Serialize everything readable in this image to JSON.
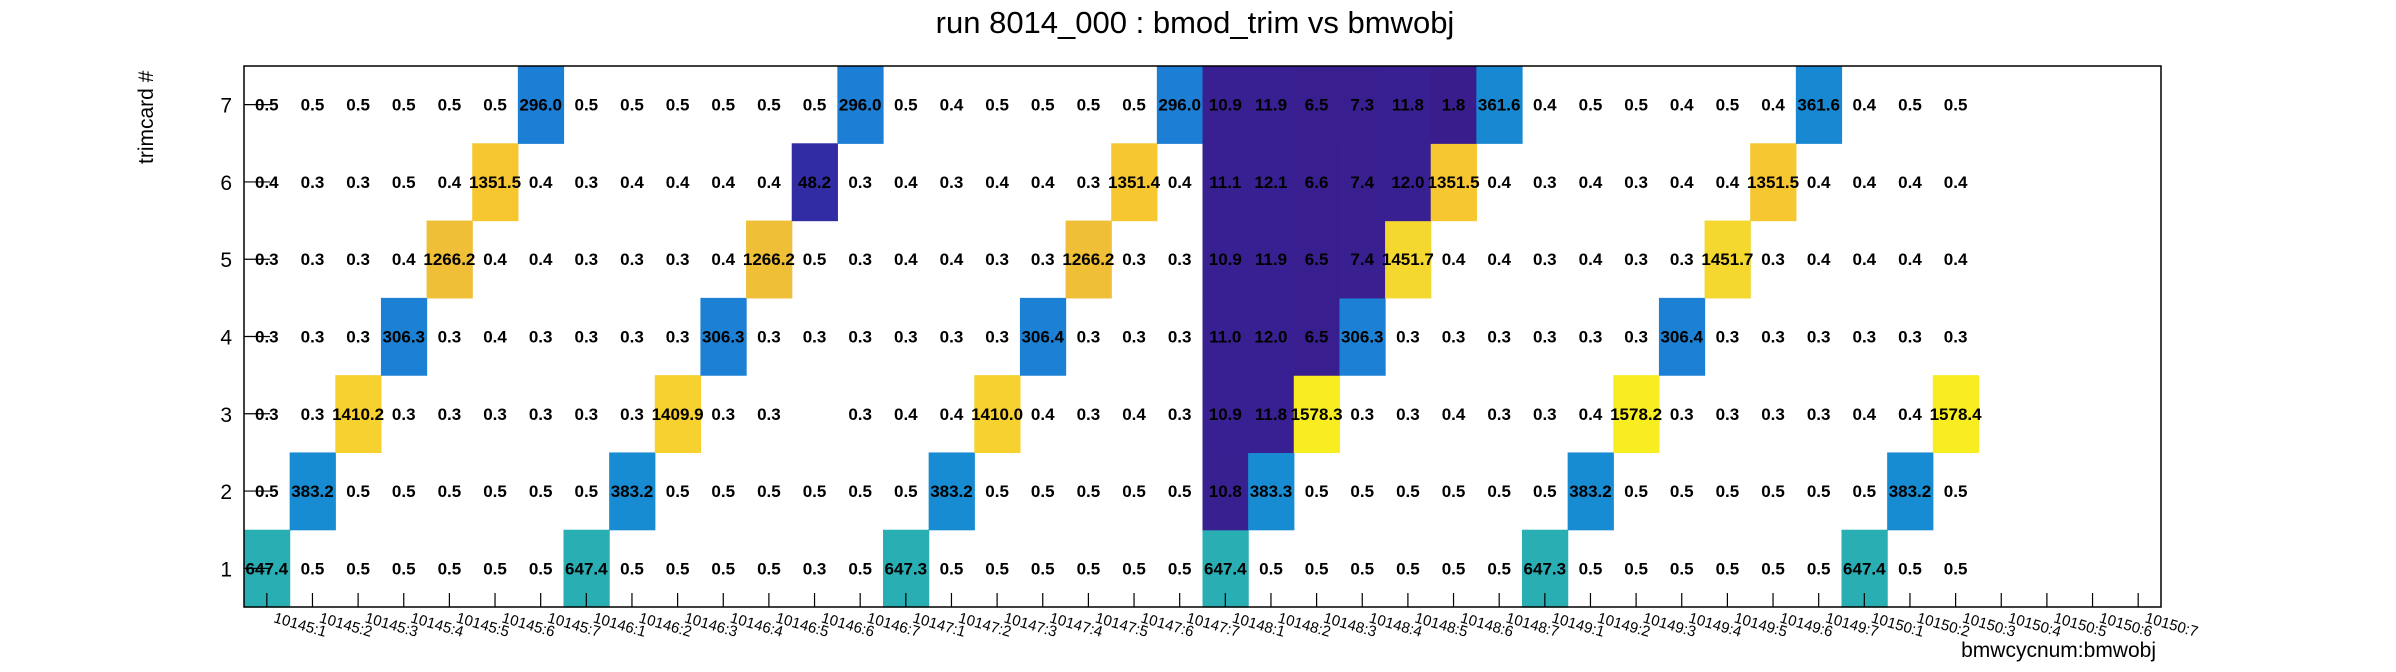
{
  "chart_data": {
    "type": "heatmap",
    "title": "run 8014_000 : bmod_trim vs bmwobj",
    "xlabel": "bmwcycnum:bmwobj",
    "ylabel": "trimcard #",
    "x": [
      "10145:1",
      "10145:2",
      "10145:3",
      "10145:4",
      "10145:5",
      "10145:6",
      "10145:7",
      "10146:1",
      "10146:2",
      "10146:3",
      "10146:4",
      "10146:5",
      "10146:6",
      "10146:7",
      "10147:1",
      "10147:2",
      "10147:3",
      "10147:4",
      "10147:5",
      "10147:6",
      "10147:7",
      "10148:1",
      "10148:2",
      "10148:3",
      "10148:4",
      "10148:5",
      "10148:6",
      "10148:7",
      "10149:1",
      "10149:2",
      "10149:3",
      "10149:4",
      "10149:5",
      "10149:6",
      "10149:7",
      "10150:1",
      "10150:2",
      "10150:3",
      "10150:4",
      "10150:5",
      "10150:6",
      "10150:7"
    ],
    "y": [
      "1",
      "2",
      "3",
      "4",
      "5",
      "6",
      "7"
    ],
    "zlim": [
      0,
      1651.5
    ],
    "colormap": [
      "#3a1c8c",
      "#1e4fd8",
      "#1c7fd4",
      "#1596d0",
      "#19a9c2",
      "#4cb896",
      "#86c17a",
      "#c1bd5c",
      "#eab93c",
      "#f6c730",
      "#f5e02e",
      "#f9fa14"
    ],
    "grid": false,
    "values": [
      [
        "647.4",
        "0.5",
        "0.5",
        "0.5",
        "0.5",
        "0.5",
        "0.5",
        "647.4",
        "0.5",
        "0.5",
        "0.5",
        "0.5",
        "0.3",
        "0.5",
        "647.3",
        "0.5",
        "0.5",
        "0.5",
        "0.5",
        "0.5",
        "0.5",
        "647.4",
        "0.5",
        "0.5",
        "0.5",
        "0.5",
        "0.5",
        "0.5",
        "647.3",
        "0.5",
        "0.5",
        "0.5",
        "0.5",
        "0.5",
        "0.5",
        "647.4",
        "0.5",
        "0.5",
        "",
        "",
        "",
        ""
      ],
      [
        "0.5",
        "383.2",
        "0.5",
        "0.5",
        "0.5",
        "0.5",
        "0.5",
        "0.5",
        "383.2",
        "0.5",
        "0.5",
        "0.5",
        "0.5",
        "0.5",
        "0.5",
        "383.2",
        "0.5",
        "0.5",
        "0.5",
        "0.5",
        "0.5",
        "10.8",
        "383.3",
        "0.5",
        "0.5",
        "0.5",
        "0.5",
        "0.5",
        "0.5",
        "383.2",
        "0.5",
        "0.5",
        "0.5",
        "0.5",
        "0.5",
        "0.5",
        "383.2",
        "0.5",
        "",
        "",
        "",
        ""
      ],
      [
        "0.3",
        "0.3",
        "1410.2",
        "0.3",
        "0.3",
        "0.3",
        "0.3",
        "0.3",
        "0.3",
        "1409.9",
        "0.3",
        "0.3",
        "",
        "0.3",
        "0.4",
        "0.4",
        "1410.0",
        "0.4",
        "0.3",
        "0.4",
        "0.3",
        "10.9",
        "11.8",
        "1578.3",
        "0.3",
        "0.3",
        "0.4",
        "0.3",
        "0.3",
        "0.4",
        "1578.2",
        "0.3",
        "0.3",
        "0.3",
        "0.3",
        "0.4",
        "0.4",
        "1578.4",
        "",
        "",
        "",
        ""
      ],
      [
        "0.3",
        "0.3",
        "0.3",
        "306.3",
        "0.3",
        "0.4",
        "0.3",
        "0.3",
        "0.3",
        "0.3",
        "306.3",
        "0.3",
        "0.3",
        "0.3",
        "0.3",
        "0.3",
        "0.3",
        "306.4",
        "0.3",
        "0.3",
        "0.3",
        "11.0",
        "12.0",
        "6.5",
        "306.3",
        "0.3",
        "0.3",
        "0.3",
        "0.3",
        "0.3",
        "0.3",
        "306.4",
        "0.3",
        "0.3",
        "0.3",
        "0.3",
        "0.3",
        "0.3",
        "",
        "",
        "",
        ""
      ],
      [
        "0.3",
        "0.3",
        "0.3",
        "0.4",
        "1266.2",
        "0.4",
        "0.4",
        "0.3",
        "0.3",
        "0.3",
        "0.4",
        "1266.2",
        "0.5",
        "0.3",
        "0.4",
        "0.4",
        "0.3",
        "0.3",
        "1266.2",
        "0.3",
        "0.3",
        "10.9",
        "11.9",
        "6.5",
        "7.4",
        "1451.7",
        "0.4",
        "0.4",
        "0.3",
        "0.4",
        "0.3",
        "0.3",
        "1451.7",
        "0.3",
        "0.4",
        "0.4",
        "0.4",
        "0.4",
        "",
        "",
        "",
        ""
      ],
      [
        "0.4",
        "0.3",
        "0.3",
        "0.5",
        "0.4",
        "1351.5",
        "0.4",
        "0.3",
        "0.4",
        "0.4",
        "0.4",
        "0.4",
        "48.2",
        "0.3",
        "0.4",
        "0.3",
        "0.4",
        "0.4",
        "0.3",
        "1351.4",
        "0.4",
        "11.1",
        "12.1",
        "6.6",
        "7.4",
        "12.0",
        "1351.5",
        "0.4",
        "0.3",
        "0.4",
        "0.3",
        "0.4",
        "0.4",
        "1351.5",
        "0.4",
        "0.4",
        "0.4",
        "0.4",
        "",
        "",
        "",
        ""
      ],
      [
        "0.5",
        "0.5",
        "0.5",
        "0.5",
        "0.5",
        "0.5",
        "296.0",
        "0.5",
        "0.5",
        "0.5",
        "0.5",
        "0.5",
        "0.5",
        "296.0",
        "0.5",
        "0.4",
        "0.5",
        "0.5",
        "0.5",
        "0.5",
        "296.0",
        "10.9",
        "11.9",
        "6.5",
        "7.3",
        "11.8",
        "1.8",
        "361.6",
        "0.4",
        "0.5",
        "0.5",
        "0.4",
        "0.5",
        "0.4",
        "361.6",
        "0.4",
        "0.5",
        "0.5",
        "",
        "",
        "",
        ""
      ]
    ]
  }
}
